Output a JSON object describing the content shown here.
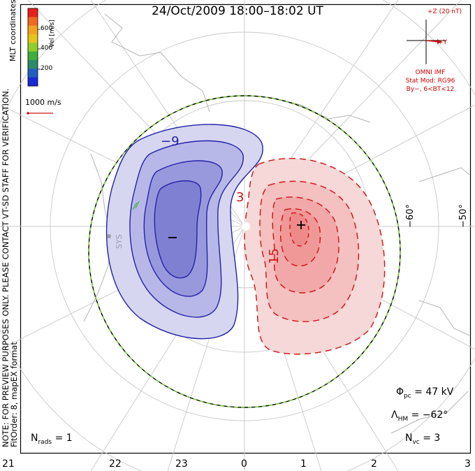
{
  "title": "24/Oct/2009 18:00–18:02 UT",
  "side_note": "NOTE: FOR PREVIEW PURPOSES ONLY. PLEASE CONTACT VT-SD STAFF FOR VERIFICATION.",
  "fit_order": "FitOrder: 8, mapEX format",
  "coordinates_label": "MLT coordinates",
  "colorbar": {
    "title": "Vel [m/s]",
    "ticks": [
      "600",
      "400",
      "200"
    ],
    "colors": [
      "#e8201c",
      "#f26a1e",
      "#f2a21c",
      "#e6c41a",
      "#8fcf2a",
      "#3fae3c",
      "#2a8a6a",
      "#2060c0",
      "#1a2ad8"
    ]
  },
  "vector_scale": "1000 m/s",
  "imf": {
    "z_label": "+Z (20 nT)",
    "y_label": "+Y",
    "source": "OMNI IMF",
    "model": "Stat Mod: RG96",
    "condition": "By−, 6<BT<12"
  },
  "stats": {
    "phi_symbol": "Φ",
    "phi_sub": "pc",
    "phi_value": "= 47 kV",
    "lambda_symbol": "Λ",
    "lambda_sub": "HM",
    "lambda_value": "= −62°",
    "nvc_symbol": "N",
    "nvc_sub": "vc",
    "nvc_value": "= 3",
    "nrads_symbol": "N",
    "nrads_sub": "rads",
    "nrads_value": "= 1"
  },
  "mlt_axis": [
    "21",
    "22",
    "23",
    "0",
    "1",
    "2",
    "3"
  ],
  "lat_labels": [
    "−60°",
    "−50°"
  ],
  "contour_labels": {
    "negative": "−9",
    "positive_small": "3",
    "positive_large": "15"
  },
  "extrema": {
    "min": "−",
    "max": "+"
  },
  "station": "SYS",
  "colors": {
    "negative": "#2222aa",
    "negative_fill": "#6a6ad6",
    "positive": "#cc1111",
    "positive_fill": "#f08080",
    "imf": "#d40000",
    "boundary": "#7acc3a"
  }
}
